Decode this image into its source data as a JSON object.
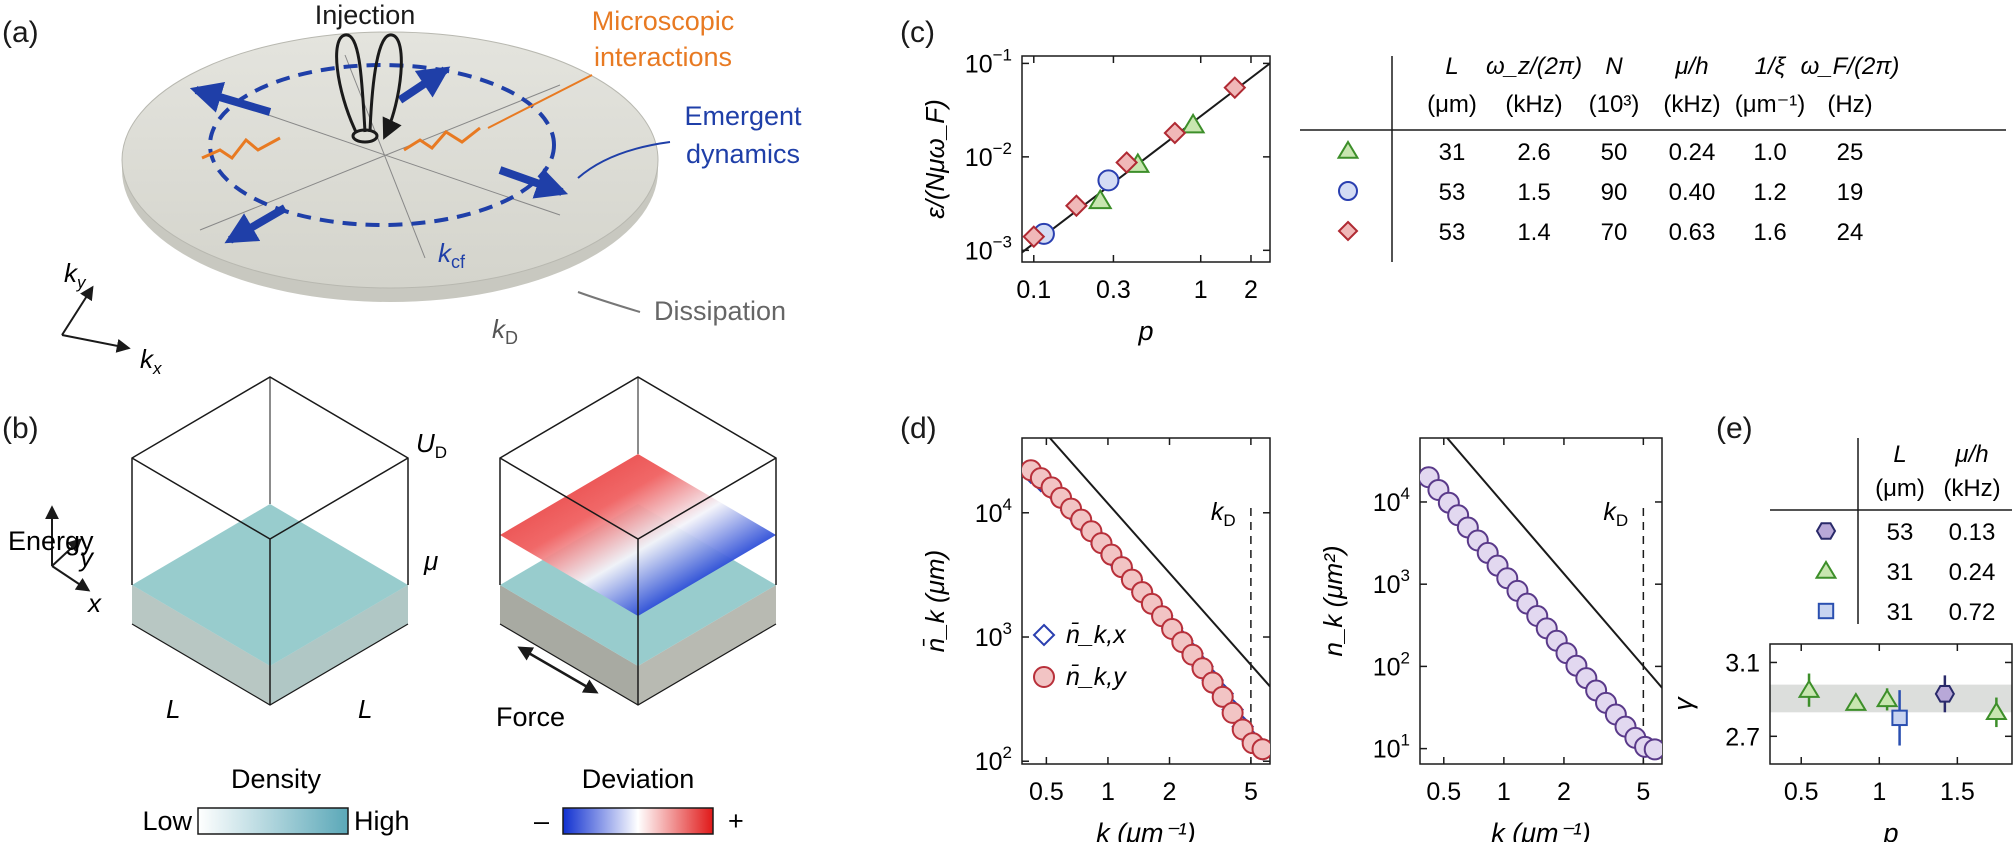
{
  "panel_labels": {
    "a": "(a)",
    "b": "(b)",
    "c": "(c)",
    "d": "(d)",
    "e": "(e)"
  },
  "panel_a": {
    "injection": "Injection",
    "microscopic_line1": "Microscopic",
    "microscopic_line2": "interactions",
    "emergent_line1": "Emergent",
    "emergent_line2": "dynamics",
    "dissipation": "Dissipation",
    "k_cf": "k",
    "k_cf_sub": "cf",
    "k_D": "k",
    "k_D_sub": "D",
    "axis_ky": "k",
    "axis_ky_sub": "y",
    "axis_kx": "k",
    "axis_kx_sub": "x",
    "colors": {
      "orange": "#e87a22",
      "blue": "#1f3fa8",
      "disk": "#dcdcd6"
    }
  },
  "panel_b": {
    "energy": "Energy",
    "axis_y": "y",
    "axis_x": "x",
    "U_D": "U",
    "U_D_sub": "D",
    "mu": "μ",
    "L1": "L",
    "L2": "L",
    "force": "Force",
    "density_title": "Density",
    "density_low": "Low",
    "density_high": "High",
    "deviation_title": "Deviation",
    "deviation_minus": "–",
    "deviation_plus": "+",
    "colors": {
      "density_high": "#5ba8b8",
      "density_low": "#ffffff",
      "dev_neg": "#1030d0",
      "dev_pos": "#e01818"
    }
  },
  "panel_c_table": {
    "headers": [
      {
        "top": "L",
        "bottom": "(μm)"
      },
      {
        "top": "ω_z/(2π)",
        "bottom": "(kHz)"
      },
      {
        "top": "N",
        "bottom": "(10³)"
      },
      {
        "top": "μ/h",
        "bottom": "(kHz)"
      },
      {
        "top": "1/ξ",
        "bottom": "(μm⁻¹)"
      },
      {
        "top": "ω_F/(2π)",
        "bottom": "(Hz)"
      }
    ],
    "rows": [
      {
        "marker": "triangle",
        "cells": [
          "31",
          "2.6",
          "50",
          "0.24",
          "1.0",
          "25"
        ]
      },
      {
        "marker": "circle",
        "cells": [
          "53",
          "1.5",
          "90",
          "0.40",
          "1.2",
          "19"
        ]
      },
      {
        "marker": "diamond",
        "cells": [
          "53",
          "1.4",
          "70",
          "0.63",
          "1.6",
          "24"
        ]
      }
    ]
  },
  "panel_e_table": {
    "headers": [
      {
        "top": "L",
        "bottom": "(μm)"
      },
      {
        "top": "μ/h",
        "bottom": "(kHz)"
      }
    ],
    "rows": [
      {
        "marker": "hexagon",
        "cells": [
          "53",
          "0.13"
        ]
      },
      {
        "marker": "triangle",
        "cells": [
          "31",
          "0.24"
        ]
      },
      {
        "marker": "square",
        "cells": [
          "31",
          "0.72"
        ]
      }
    ]
  },
  "markers": {
    "triangle": {
      "stroke": "#3d8f2a",
      "fill": "#c8e6b0"
    },
    "circle": {
      "stroke": "#2a3fb0",
      "fill": "#d4dcf4"
    },
    "diamond": {
      "stroke": "#b02a33",
      "fill": "#f0b8b8"
    },
    "hexagon": {
      "stroke": "#2a2a6a",
      "fill": "#b8a8d8"
    },
    "square": {
      "stroke": "#2a4fb0",
      "fill": "#c8d4f0"
    },
    "red_circle": {
      "stroke": "#b8303a",
      "fill": "#f2c4c4"
    },
    "purple_circle": {
      "stroke": "#5a3a8a",
      "fill": "#e2d8f0"
    }
  },
  "chart_data": [
    {
      "id": "c",
      "type": "scatter",
      "xscale": "log",
      "yscale": "log",
      "xlabel": "p",
      "ylabel": "ε/(Nμω_F)",
      "xlim": [
        0.085,
        2.6
      ],
      "ylim": [
        0.00075,
        0.12
      ],
      "xticks": [
        {
          "v": 0.1,
          "t": "0.1"
        },
        {
          "v": 0.3,
          "t": "0.3"
        },
        {
          "v": 1,
          "t": "1"
        },
        {
          "v": 2,
          "t": "2"
        }
      ],
      "yticks": [
        {
          "v": 0.001,
          "t": "10",
          "e": "−3"
        },
        {
          "v": 0.01,
          "t": "10",
          "e": "−2"
        },
        {
          "v": 0.1,
          "t": "10",
          "e": "−1"
        }
      ],
      "fit_line": [
        [
          0.085,
          0.00095
        ],
        [
          2.6,
          0.1
        ]
      ],
      "series": [
        {
          "marker": "triangle",
          "points": [
            [
              0.25,
              0.0034
            ],
            [
              0.42,
              0.0083
            ],
            [
              0.9,
              0.022
            ]
          ]
        },
        {
          "marker": "circle",
          "points": [
            [
              0.115,
              0.0015
            ],
            [
              0.28,
              0.0056
            ]
          ]
        },
        {
          "marker": "diamond",
          "points": [
            [
              0.1,
              0.0014
            ],
            [
              0.18,
              0.003
            ],
            [
              0.36,
              0.0087
            ],
            [
              0.7,
              0.018
            ],
            [
              1.6,
              0.055
            ]
          ]
        }
      ]
    },
    {
      "id": "d1",
      "type": "scatter",
      "xscale": "log",
      "yscale": "log",
      "xlabel": "k (μm⁻¹)",
      "ylabel": "n̄_k (μm)",
      "xlim": [
        0.38,
        6.2
      ],
      "ylim": [
        95,
        40000
      ],
      "xticks": [
        {
          "v": 0.5,
          "t": "0.5"
        },
        {
          "v": 1,
          "t": "1"
        },
        {
          "v": 2,
          "t": "2"
        },
        {
          "v": 5,
          "t": "5"
        }
      ],
      "yticks": [
        {
          "v": 100,
          "t": "10",
          "e": "2"
        },
        {
          "v": 1000,
          "t": "10",
          "e": "3"
        },
        {
          "v": 10000,
          "t": "10",
          "e": "4"
        }
      ],
      "ref_line": [
        [
          0.52,
          40000
        ],
        [
          6.2,
          400
        ]
      ],
      "kD": 5.0,
      "kD_label": "k",
      "kD_sub": "D",
      "legend": [
        {
          "marker": "diamond_blue",
          "text": "n̄_k,x"
        },
        {
          "marker": "red_circle",
          "text": "n̄_k,y"
        }
      ],
      "series": [
        {
          "name": "n̄_k,x",
          "marker": "diamond_blue",
          "points": [
            [
              0.42,
              21000
            ],
            [
              0.47,
              18000
            ],
            [
              0.53,
              15500
            ],
            [
              0.59,
              13000
            ],
            [
              0.66,
              10500
            ],
            [
              0.74,
              8600
            ],
            [
              0.83,
              7000
            ],
            [
              0.93,
              5600
            ],
            [
              1.04,
              4500
            ],
            [
              1.17,
              3600
            ],
            [
              1.31,
              2900
            ],
            [
              1.47,
              2300
            ],
            [
              1.64,
              1850
            ],
            [
              1.84,
              1480
            ],
            [
              2.06,
              1180
            ],
            [
              2.31,
              930
            ],
            [
              2.59,
              740
            ],
            [
              2.9,
              580
            ],
            [
              3.25,
              450
            ],
            [
              3.64,
              350
            ],
            [
              4.07,
              260
            ],
            [
              4.56,
              190
            ],
            [
              5.1,
              145
            ],
            [
              5.7,
              125
            ]
          ]
        },
        {
          "name": "n̄_k,y",
          "marker": "red_circle",
          "points": [
            [
              0.42,
              22000
            ],
            [
              0.47,
              19000
            ],
            [
              0.53,
              16000
            ],
            [
              0.59,
              13200
            ],
            [
              0.66,
              10800
            ],
            [
              0.74,
              8800
            ],
            [
              0.83,
              7100
            ],
            [
              0.93,
              5700
            ],
            [
              1.04,
              4600
            ],
            [
              1.17,
              3650
            ],
            [
              1.31,
              2900
            ],
            [
              1.47,
              2300
            ],
            [
              1.64,
              1850
            ],
            [
              1.84,
              1470
            ],
            [
              2.06,
              1160
            ],
            [
              2.31,
              910
            ],
            [
              2.59,
              720
            ],
            [
              2.9,
              560
            ],
            [
              3.25,
              430
            ],
            [
              3.64,
              330
            ],
            [
              4.07,
              245
            ],
            [
              4.56,
              180
            ],
            [
              5.1,
              140
            ],
            [
              5.7,
              125
            ]
          ]
        }
      ]
    },
    {
      "id": "d2",
      "type": "scatter",
      "xscale": "log",
      "yscale": "log",
      "xlabel": "k (μm⁻¹)",
      "ylabel": "n_k (μm²)",
      "xlim": [
        0.38,
        6.2
      ],
      "ylim": [
        6.5,
        60000
      ],
      "xticks": [
        {
          "v": 0.5,
          "t": "0.5"
        },
        {
          "v": 1,
          "t": "1"
        },
        {
          "v": 2,
          "t": "2"
        },
        {
          "v": 5,
          "t": "5"
        }
      ],
      "yticks": [
        {
          "v": 10,
          "t": "10",
          "e": "1"
        },
        {
          "v": 100,
          "t": "10",
          "e": "2"
        },
        {
          "v": 1000,
          "t": "10",
          "e": "3"
        },
        {
          "v": 10000,
          "t": "10",
          "e": "4"
        }
      ],
      "ref_line": [
        [
          0.52,
          60000
        ],
        [
          6.2,
          55
        ]
      ],
      "kD": 5.0,
      "kD_label": "k",
      "kD_sub": "D",
      "series": [
        {
          "marker": "purple_circle",
          "points": [
            [
              0.42,
              20000
            ],
            [
              0.47,
              14000
            ],
            [
              0.53,
              9800
            ],
            [
              0.59,
              6900
            ],
            [
              0.66,
              4900
            ],
            [
              0.74,
              3400
            ],
            [
              0.83,
              2400
            ],
            [
              0.93,
              1680
            ],
            [
              1.04,
              1180
            ],
            [
              1.17,
              830
            ],
            [
              1.31,
              580
            ],
            [
              1.47,
              410
            ],
            [
              1.64,
              290
            ],
            [
              1.84,
              205
            ],
            [
              2.06,
              145
            ],
            [
              2.31,
              102
            ],
            [
              2.59,
              72
            ],
            [
              2.9,
              51
            ],
            [
              3.25,
              36
            ],
            [
              3.64,
              26
            ],
            [
              4.07,
              18.5
            ],
            [
              4.56,
              13.5
            ],
            [
              5.1,
              10.5
            ],
            [
              5.7,
              9.8
            ]
          ]
        }
      ]
    },
    {
      "id": "e",
      "type": "scatter",
      "xlabel": "p",
      "ylabel": "γ",
      "xlim": [
        0.3,
        1.85
      ],
      "ylim": [
        2.55,
        3.2
      ],
      "xticks": [
        {
          "v": 0.5,
          "t": "0.5"
        },
        {
          "v": 1,
          "t": "1"
        },
        {
          "v": 1.5,
          "t": "1.5"
        }
      ],
      "yticks": [
        {
          "v": 2.7,
          "t": "2.7"
        },
        {
          "v": 3.1,
          "t": "3.1"
        }
      ],
      "band": [
        2.83,
        2.98
      ],
      "series": [
        {
          "marker": "triangle",
          "points": [
            [
              0.55,
              2.95,
              0.09
            ],
            [
              0.85,
              2.88,
              0.04
            ],
            [
              1.05,
              2.9,
              0.06
            ],
            [
              1.75,
              2.83,
              0.08
            ]
          ]
        },
        {
          "marker": "square",
          "points": [
            [
              1.13,
              2.8,
              0.15
            ]
          ]
        },
        {
          "marker": "hexagon",
          "points": [
            [
              1.42,
              2.93,
              0.1
            ]
          ]
        }
      ]
    }
  ]
}
